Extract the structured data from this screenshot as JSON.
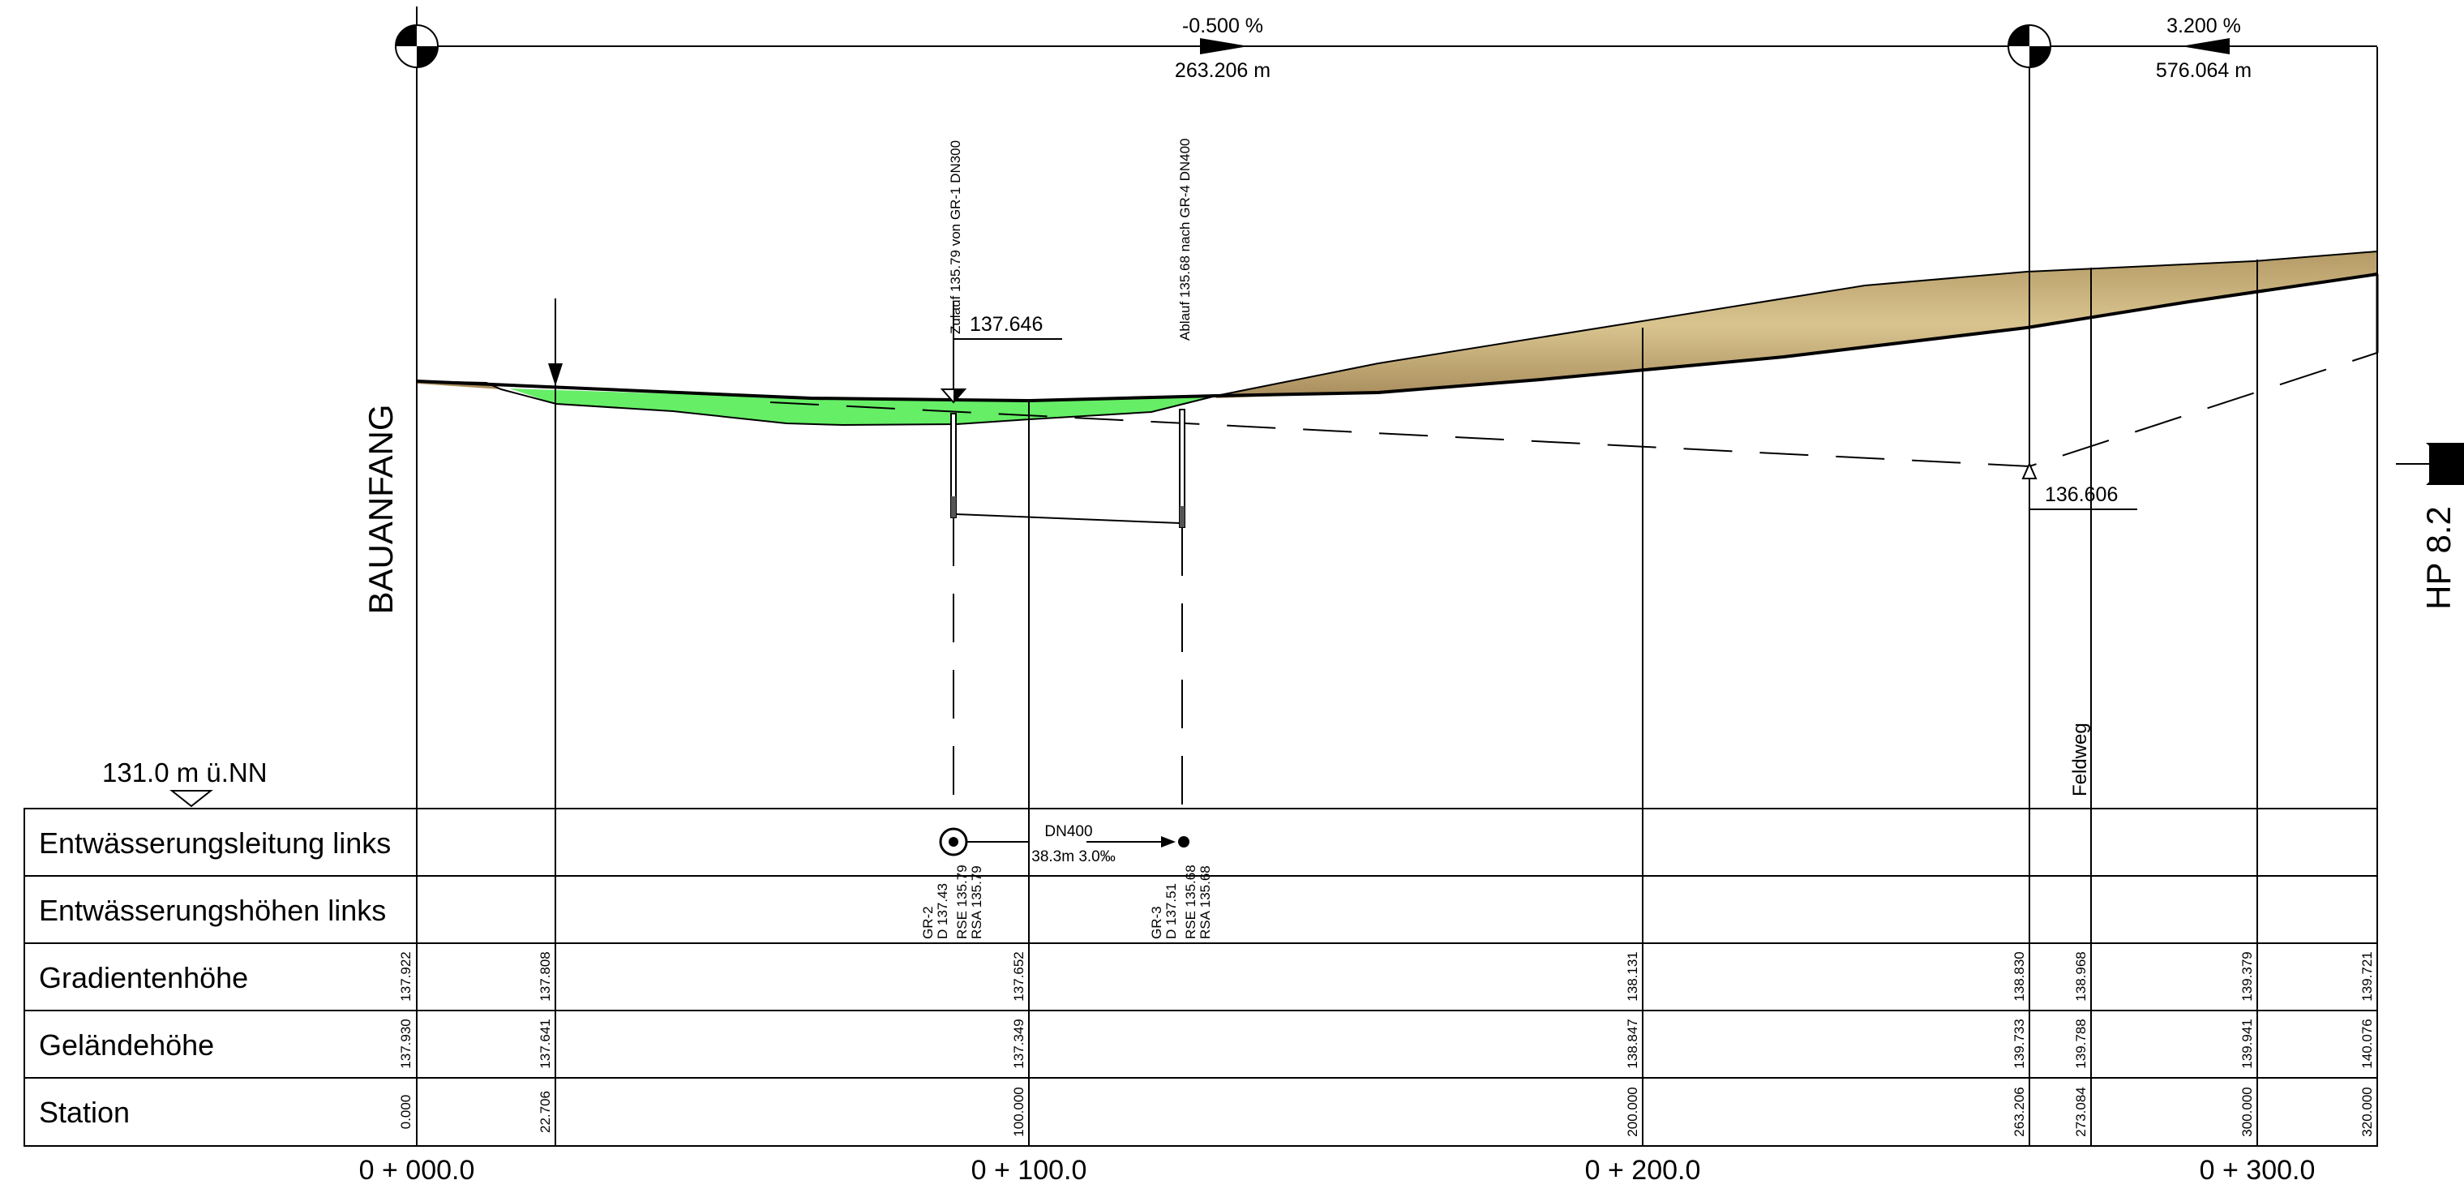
{
  "slopes": [
    {
      "percent": "-0.500 %",
      "length": "263.206 m"
    },
    {
      "percent": "3.200 %",
      "length": "576.064 m"
    }
  ],
  "labels": {
    "start": "BAUANFANG",
    "end": "HP 8.2",
    "datum": "131.0 m ü.NN",
    "feldweg": "Feldweg",
    "inlet_note": "Zulauf 135.79 von GR-1 DN300",
    "outlet_note": "Ablauf 135.68 nach GR-4 DN400",
    "tangent_elev_1": "137.646",
    "tangent_elev_2": "136.606",
    "pipe_size": "DN400",
    "pipe_info": "38.3m 3.0‰"
  },
  "manholes": [
    {
      "name": "GR-2",
      "d": "D 137.43",
      "rse": "RSE 135.79",
      "rsa": "RSA 135.79"
    },
    {
      "name": "GR-3",
      "d": "D 137.51",
      "rse": "RSE 135.68",
      "rsa": "RSA 135.68"
    }
  ],
  "band_rows": [
    "Entwässerungsleitung links",
    "Entwässerungshöhen links",
    "Gradientenhöhe",
    "Geländehöhe",
    "Station"
  ],
  "gradient_values": [
    "137.922",
    "137.808",
    "137.652",
    "138.131",
    "138.830",
    "138.968",
    "139.379",
    "139.721"
  ],
  "terrain_values": [
    "137.930",
    "137.641",
    "137.349",
    "138.847",
    "139.733",
    "139.788",
    "139.941",
    "140.076"
  ],
  "station_values": [
    "0.000",
    "22.706",
    "100.000",
    "200.000",
    "263.206",
    "273.084",
    "300.000",
    "320.000"
  ],
  "axis_labels": [
    "0 + 000.0",
    "0 + 100.0",
    "0 + 200.0",
    "0 + 300.0"
  ]
}
